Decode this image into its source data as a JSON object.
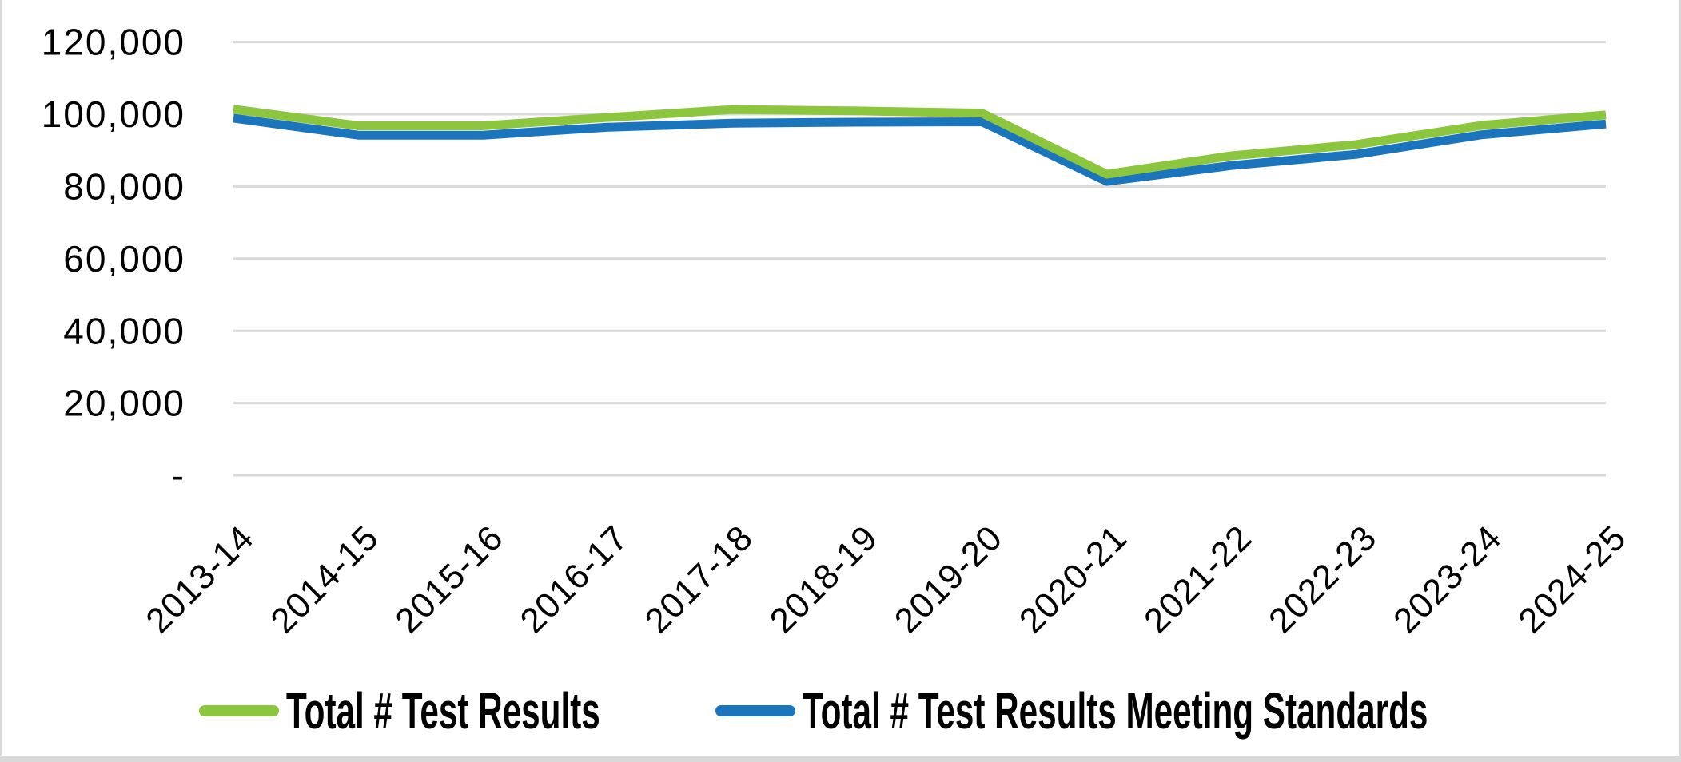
{
  "chart_data": {
    "type": "line",
    "title": "",
    "xlabel": "",
    "ylabel": "",
    "categories": [
      "2013-14",
      "2014-15",
      "2015-16",
      "2016-17",
      "2017-18",
      "2018-19",
      "2019-20",
      "2020-21",
      "2021-22",
      "2022-23",
      "2023-24",
      "2024-25"
    ],
    "series": [
      {
        "name": "Total # Test Results",
        "color": "#8cc63e",
        "values": [
          101400,
          96800,
          96800,
          99100,
          101300,
          100900,
          100300,
          83400,
          88500,
          91600,
          96900,
          99800
        ]
      },
      {
        "name": "Total # Test Results Meeting Standards",
        "color": "#1b75bc",
        "values": [
          98900,
          94200,
          94200,
          96400,
          97500,
          97800,
          97900,
          81400,
          85800,
          88900,
          94300,
          97300
        ]
      }
    ],
    "ylim": [
      0,
      120000
    ],
    "y_ticks": {
      "values": [
        120000,
        100000,
        80000,
        60000,
        40000,
        20000,
        0
      ],
      "labels": [
        "120,000",
        "100,000",
        "80,000",
        "60,000",
        "40,000",
        "20,000",
        "-"
      ]
    },
    "grid": true,
    "gridline_color": "#d9d9d9",
    "x_tick_rotation_deg": 45,
    "legend_position": "bottom"
  },
  "frame": {
    "background": "#ffffff",
    "border_color": "#d9d9d9",
    "text_color": "#000000"
  }
}
